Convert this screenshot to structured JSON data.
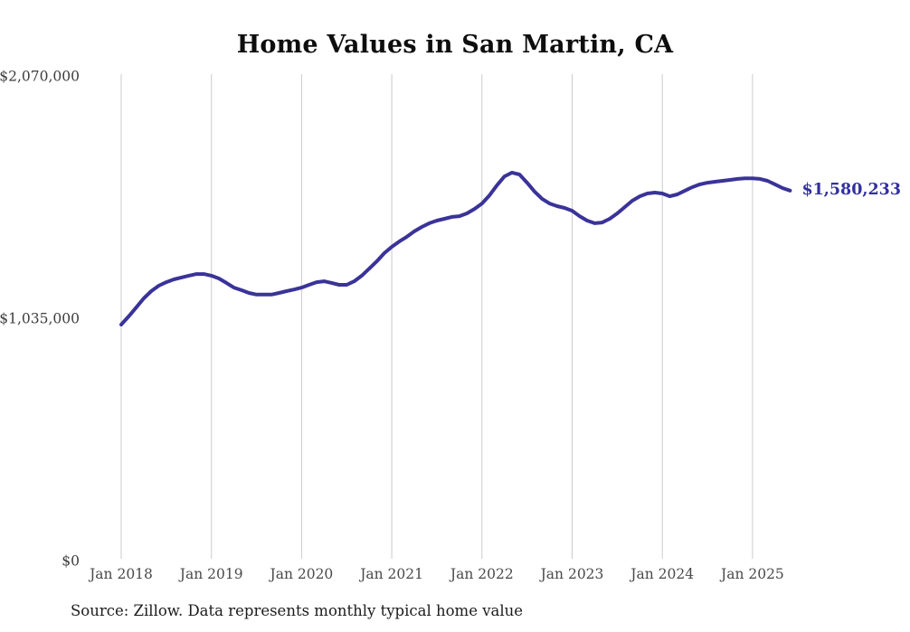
{
  "title": "Home Values in San Martin, CA",
  "source_note": "Source: Zillow. Data represents monthly typical home value",
  "end_label": "$1,580,233",
  "colors": {
    "line": "#3a3399",
    "grid": "#cbcbcb",
    "x_tick_text": "#4a4a4a",
    "y_tick_text": "#3d3d3d",
    "end_label_text": "#33309e"
  },
  "chart_data": {
    "type": "line",
    "title": "Home Values in San Martin, CA",
    "xlabel": "",
    "ylabel": "",
    "x_tick_labels": [
      "Jan 2018",
      "Jan 2019",
      "Jan 2020",
      "Jan 2021",
      "Jan 2022",
      "Jan 2023",
      "Jan 2024",
      "Jan 2025"
    ],
    "y_ticks": [
      {
        "label": "$0",
        "value": 0
      },
      {
        "label": "$1,035,000",
        "value": 1035000
      },
      {
        "label": "$2,070,000",
        "value": 2070000
      }
    ],
    "ylim": [
      0,
      2070000
    ],
    "grid": "vertical-only",
    "legend": "none",
    "x_start_month": "Jan 2018",
    "x_end_month": "Jun 2025",
    "points_per_year": 12,
    "series": [
      {
        "name": "Monthly typical home value",
        "end_value": 1580233,
        "values": [
          1008000,
          1043000,
          1081000,
          1120000,
          1151000,
          1174000,
          1189000,
          1201000,
          1209000,
          1217000,
          1224000,
          1224000,
          1217000,
          1205000,
          1186000,
          1166000,
          1155000,
          1143000,
          1136000,
          1136000,
          1136000,
          1143000,
          1151000,
          1158000,
          1166000,
          1178000,
          1189000,
          1193000,
          1186000,
          1178000,
          1178000,
          1193000,
          1217000,
          1247000,
          1278000,
          1313000,
          1340000,
          1363000,
          1383000,
          1406000,
          1425000,
          1441000,
          1452000,
          1460000,
          1468000,
          1471000,
          1483000,
          1502000,
          1525000,
          1560000,
          1603000,
          1641000,
          1657000,
          1649000,
          1614000,
          1576000,
          1545000,
          1525000,
          1514000,
          1506000,
          1494000,
          1471000,
          1452000,
          1441000,
          1444000,
          1460000,
          1483000,
          1510000,
          1537000,
          1556000,
          1568000,
          1572000,
          1568000,
          1556000,
          1564000,
          1580000,
          1595000,
          1607000,
          1614000,
          1618000,
          1622000,
          1626000,
          1630000,
          1633000,
          1633000,
          1630000,
          1622000,
          1607000,
          1591000,
          1580233
        ]
      }
    ]
  }
}
